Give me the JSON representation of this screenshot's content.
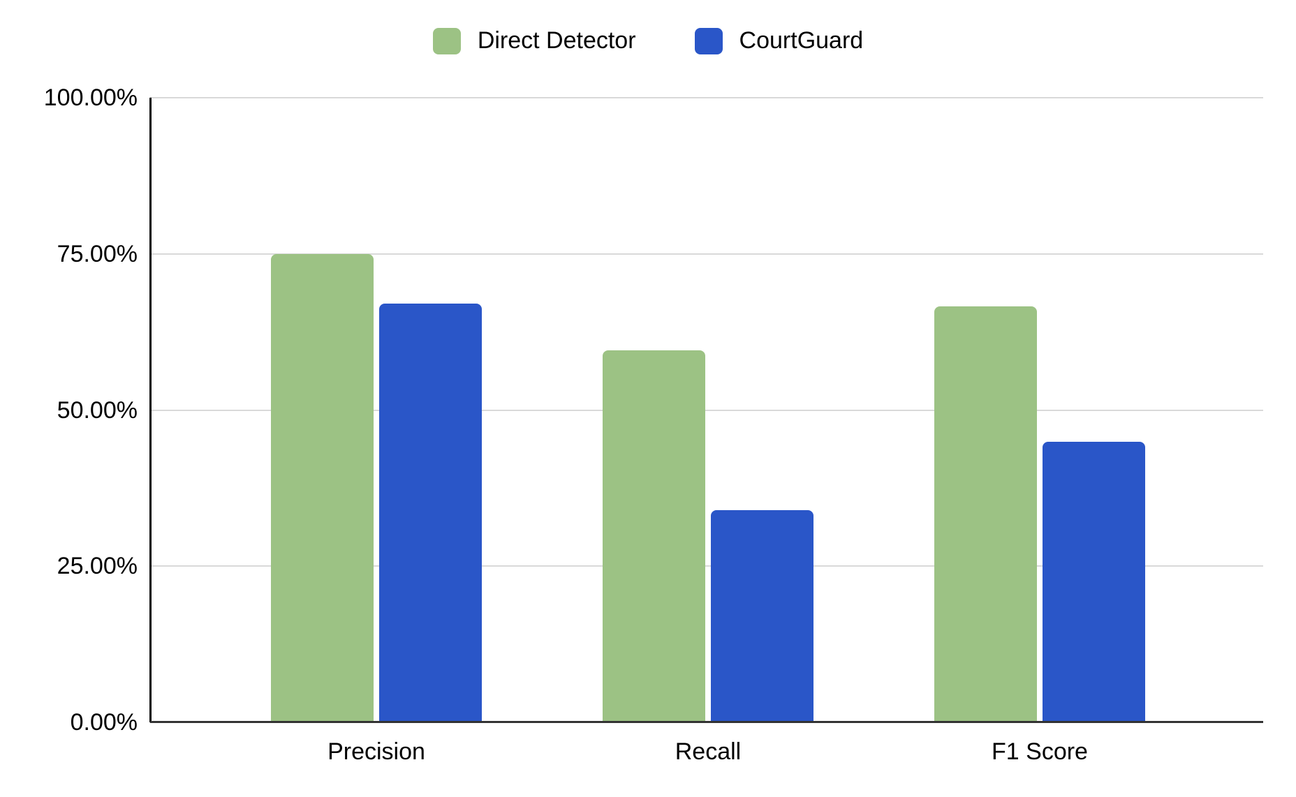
{
  "chart_data": {
    "type": "bar",
    "title": "",
    "xlabel": "",
    "ylabel": "",
    "categories": [
      "Precision",
      "Recall",
      "F1 Score"
    ],
    "series": [
      {
        "name": "Direct Detector",
        "color": "#9CC284",
        "values": [
          75.0,
          59.6,
          66.6
        ]
      },
      {
        "name": "CourtGuard",
        "color": "#2A56C8",
        "values": [
          67.0,
          34.0,
          44.9
        ]
      }
    ],
    "ylim": [
      0,
      100
    ],
    "yticks": [
      {
        "value": 0,
        "label": "0.00%"
      },
      {
        "value": 25,
        "label": "25.00%"
      },
      {
        "value": 50,
        "label": "50.00%"
      },
      {
        "value": 75,
        "label": "75.00%"
      },
      {
        "value": 100,
        "label": "100.00%"
      }
    ],
    "grid": true,
    "legend_position": "top"
  },
  "colors": {
    "gridline": "#D9D9D9",
    "y_axis_line": "#000000",
    "baseline": "#333333",
    "text": "#000000",
    "background": "#FFFFFF"
  }
}
